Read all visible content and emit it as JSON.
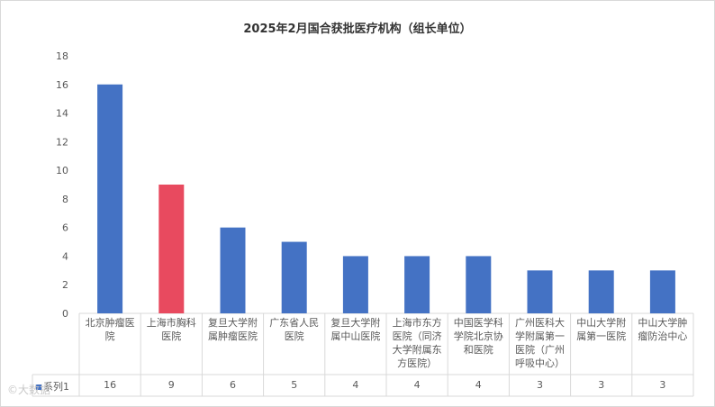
{
  "chart_data": {
    "type": "bar",
    "title": "2025年2月国合获批医疗机构（组长单位）",
    "categories": [
      "北京肿瘤医院",
      "上海市胸科医院",
      "复旦大学附属肿瘤医院",
      "广东省人民医院",
      "复旦大学附属中山医院",
      "上海市东方医院（同济大学附属东方医院）",
      "中国医学科学院北京协和医院",
      "广州医科大学附属第一医院（广州呼吸中心）",
      "中山大学附属第一医院",
      "中山大学肿瘤防治中心"
    ],
    "series": [
      {
        "name": "系列1",
        "values": [
          16,
          9,
          6,
          5,
          4,
          4,
          4,
          3,
          3,
          3
        ]
      }
    ],
    "highlight_index": 1,
    "colors": {
      "bar": "#4472c4",
      "highlight": "#e84a5f"
    },
    "ylim": [
      0,
      18
    ],
    "yticks": [
      0,
      2,
      4,
      6,
      8,
      10,
      12,
      14,
      16,
      18
    ],
    "xlabel": "",
    "ylabel": "",
    "data_table": true,
    "legend": "data-table-left"
  },
  "watermark": "©大数据"
}
